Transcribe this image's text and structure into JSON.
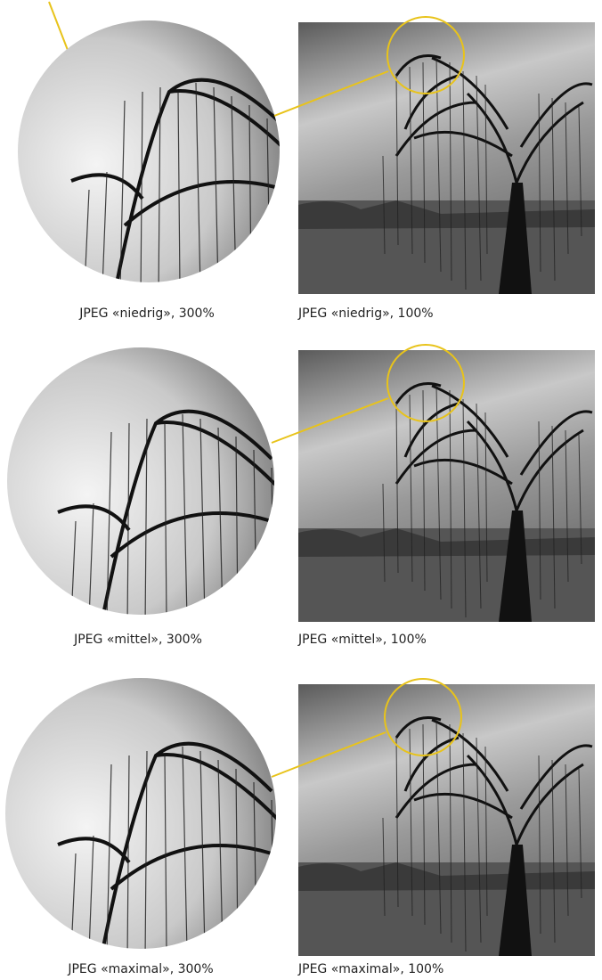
{
  "figures": [
    {
      "zoom_caption": "JPEG «niedrig», 300%",
      "full_caption": "JPEG «niedrig», 100%"
    },
    {
      "zoom_caption": "JPEG «mittel», 300%",
      "full_caption": "JPEG «mittel», 100%"
    },
    {
      "zoom_caption": "JPEG «maximal», 300%",
      "full_caption": "JPEG «maximal», 100%"
    }
  ]
}
